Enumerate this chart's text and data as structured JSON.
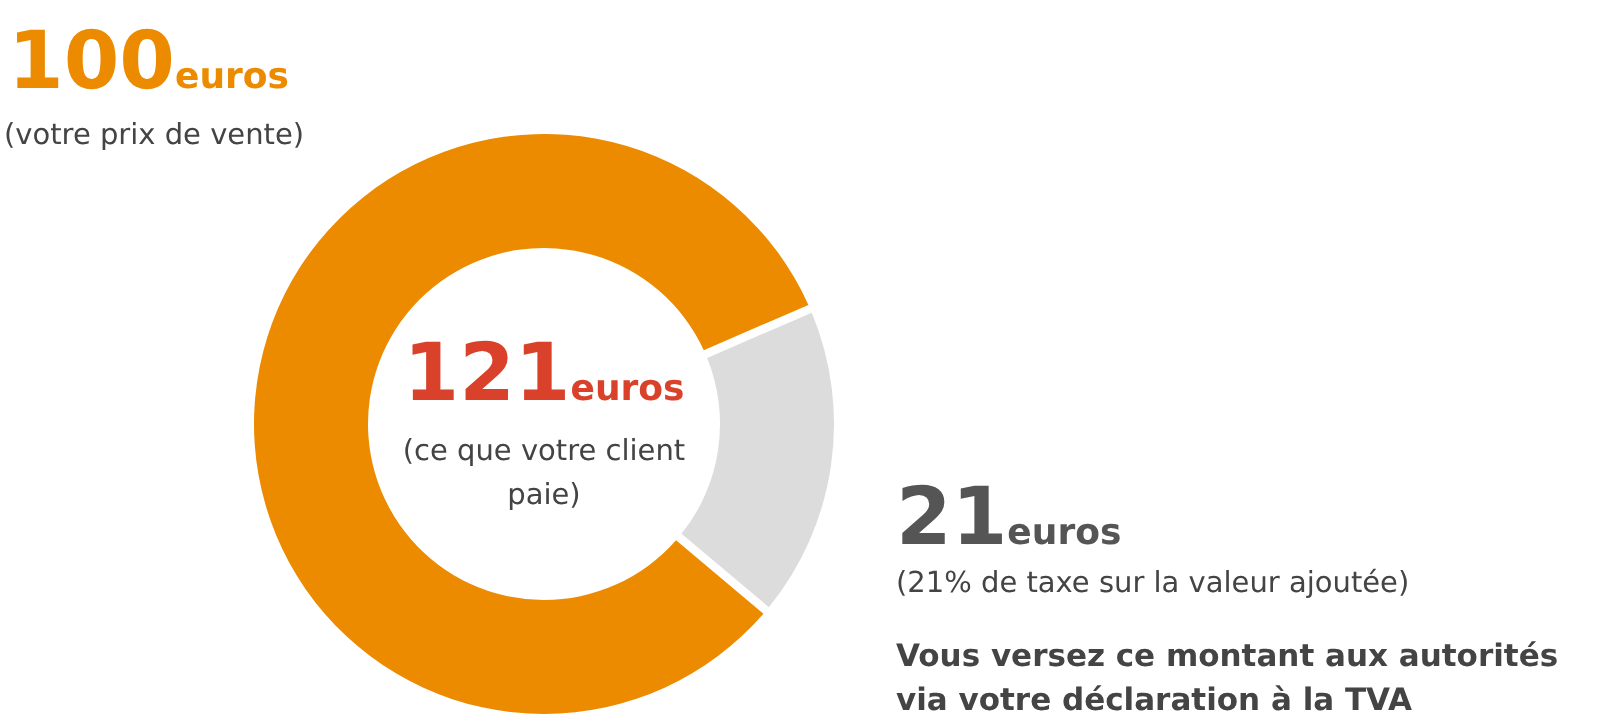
{
  "chart_data": {
    "type": "donut",
    "title": "121euros",
    "subtitle": "(ce que votre client paie)",
    "categories": [
      "(votre prix de vente)",
      "(21% de taxe sur la valeur ajoutée)"
    ],
    "values": [
      100,
      21
    ],
    "colors": [
      "#ec8b00",
      "#dcdcdc"
    ],
    "value_labels": [
      "100euros",
      "21euros"
    ],
    "annotations": [
      "Vous versez ce montant aux autorités via votre déclaration à la TVA"
    ]
  }
}
